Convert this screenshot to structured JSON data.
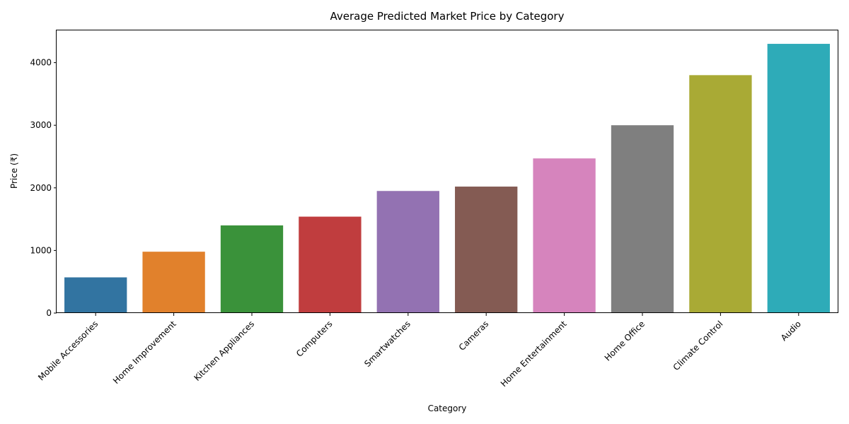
{
  "chart_data": {
    "type": "bar",
    "title": "Average Predicted Market Price by Category",
    "xlabel": "Category",
    "ylabel": "Price (₹)",
    "categories": [
      "Mobile Accessories",
      "Home Improvement",
      "Kitchen Appliances",
      "Computers",
      "Smartwatches",
      "Cameras",
      "Home Entertainment",
      "Home Office",
      "Climate Control",
      "Audio"
    ],
    "values": [
      570,
      980,
      1400,
      1540,
      1950,
      2020,
      2470,
      3000,
      3800,
      4300
    ],
    "colors": [
      "#3274a1",
      "#e1812c",
      "#3a923a",
      "#c03d3e",
      "#9372b2",
      "#845b53",
      "#d684bd",
      "#7f7f7f",
      "#a9aa35",
      "#2eabb8"
    ],
    "ylim": [
      0,
      4515
    ],
    "yticks": [
      0,
      1000,
      2000,
      3000,
      4000
    ],
    "grid": false,
    "legend": false
  }
}
